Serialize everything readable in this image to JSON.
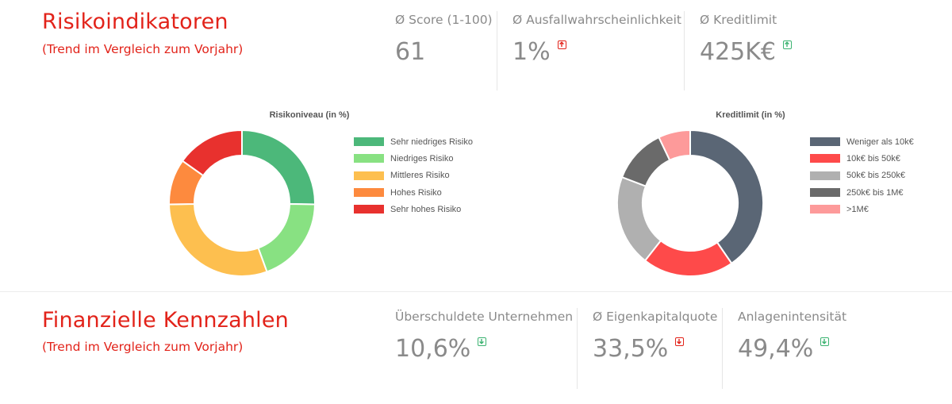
{
  "risk_section": {
    "title": "Risikoindikatoren",
    "subtitle": "(Trend im Vergleich zum Vorjahr)",
    "kpis": [
      {
        "label": "Ø Score (1-100)",
        "value": "61",
        "trend": null
      },
      {
        "label": "Ø Ausfallwahrscheinlichkeit",
        "value": "1%",
        "trend": "up",
        "trend_color": "#e2231a"
      },
      {
        "label": "Ø Kreditlimit",
        "value": "425K€",
        "trend": "up",
        "trend_color": "#3cb371"
      }
    ]
  },
  "finance_section": {
    "title": "Finanzielle Kennzahlen",
    "subtitle": "(Trend im Vergleich zum Vorjahr)",
    "kpis": [
      {
        "label": "Überschuldete Unternehmen",
        "value": "10,6%",
        "trend": "down",
        "trend_color": "#3cb371"
      },
      {
        "label": "Ø Eigenkapitalquote",
        "value": "33,5%",
        "trend": "down",
        "trend_color": "#e2231a"
      },
      {
        "label": "Anlagenintensität",
        "value": "49,4%",
        "trend": "down",
        "trend_color": "#3cb371"
      }
    ]
  },
  "chart_data": [
    {
      "type": "pie",
      "title": "Risikoniveau (in %)",
      "legend_position": "right",
      "categories": [
        "Sehr niedriges Risiko",
        "Niedriges Risiko",
        "Mittleres Risiko",
        "Hohes Risiko",
        "Sehr hohes Risiko"
      ],
      "values": [
        25,
        19,
        30,
        10,
        15
      ],
      "colors": [
        "#4cb87a",
        "#88e182",
        "#fdbf4f",
        "#fd8a3e",
        "#e8312e"
      ]
    },
    {
      "type": "pie",
      "title": "Kreditlimit (in %)",
      "legend_position": "right",
      "categories": [
        "Weniger als 10k€",
        "10k€ bis 50k€",
        "50k€ bis 250k€",
        "250k€ bis 1M€",
        ">1M€"
      ],
      "values": [
        40,
        20,
        20,
        12,
        7
      ],
      "colors": [
        "#5a6675",
        "#fe4a4a",
        "#b0b0b0",
        "#6a6a6a",
        "#fd9a9a"
      ]
    }
  ]
}
